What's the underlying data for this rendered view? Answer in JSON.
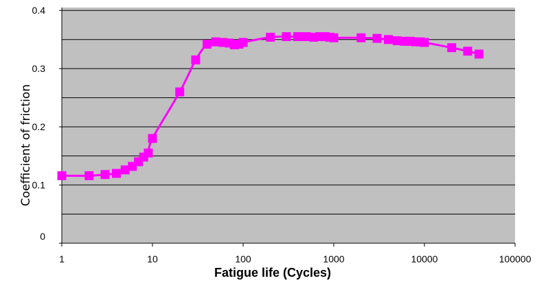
{
  "chart_data": {
    "type": "scatter",
    "title": "",
    "xlabel": "Fatigue life (Cycles)",
    "ylabel": "Coefficient of friction",
    "x_scale": "log",
    "xlim": [
      1,
      100000
    ],
    "ylim": [
      0,
      0.4
    ],
    "x_ticks": [
      1,
      10,
      100,
      1000,
      10000,
      100000
    ],
    "x_tick_labels": [
      "1",
      "10",
      "100",
      "1000",
      "10000",
      "100000"
    ],
    "y_ticks": [
      0,
      0.1,
      0.2,
      0.3,
      0.4
    ],
    "y_tick_labels": [
      "0",
      "0.1",
      "0.2",
      "0.3",
      "0.4"
    ],
    "grid": "horizontal, every 0.05",
    "legend": "none",
    "colors": {
      "series": "#ff00ff",
      "plot_background": "#c0c0c0",
      "grid": "#000000"
    },
    "series": [
      {
        "x": [
          1,
          2,
          3,
          4,
          5,
          6,
          7,
          8,
          9,
          10,
          20,
          30,
          40,
          50,
          60,
          70,
          80,
          90,
          100,
          200,
          300,
          400,
          500,
          600,
          700,
          800,
          900,
          1000,
          2000,
          3000,
          4000,
          5000,
          6000,
          7000,
          8000,
          9000,
          10000,
          20000,
          30000,
          40000
        ],
        "y": [
          0.116,
          0.116,
          0.118,
          0.12,
          0.126,
          0.132,
          0.14,
          0.148,
          0.155,
          0.18,
          0.26,
          0.315,
          0.342,
          0.346,
          0.345,
          0.344,
          0.341,
          0.342,
          0.345,
          0.354,
          0.355,
          0.355,
          0.355,
          0.354,
          0.355,
          0.355,
          0.354,
          0.353,
          0.353,
          0.352,
          0.35,
          0.348,
          0.347,
          0.347,
          0.346,
          0.346,
          0.345,
          0.336,
          0.33,
          0.325
        ]
      }
    ]
  }
}
